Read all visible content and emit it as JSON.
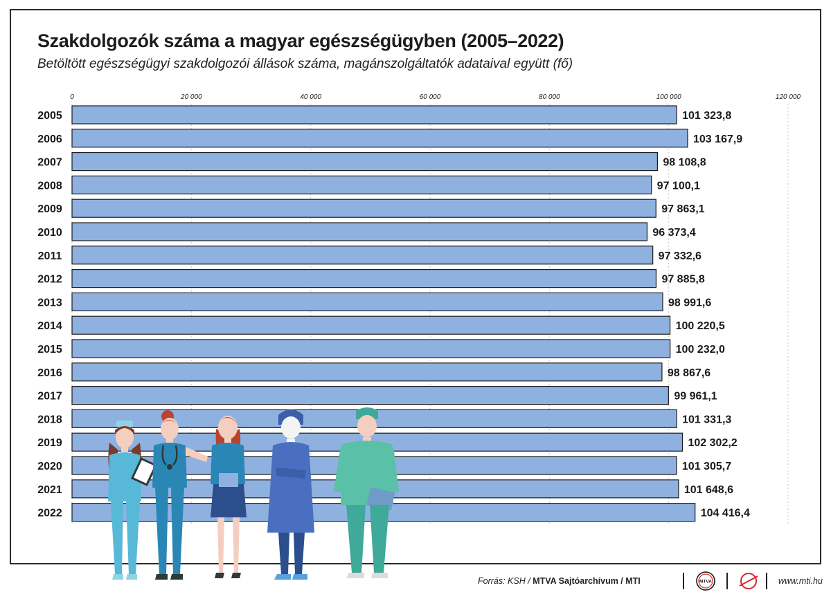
{
  "header": {
    "title": "Szakdolgozók száma a magyar egészségügyben (2005–2022)",
    "subtitle": "Betöltött egészségügyi szakdolgozói állások száma, magánszolgáltatók adataival együtt (fő)"
  },
  "chart_data": {
    "type": "bar",
    "orientation": "horizontal",
    "title": "Szakdolgozók száma a magyar egészségügyben (2005–2022)",
    "subtitle": "Betöltött egészségügyi szakdolgozói állások száma, magánszolgáltatók adataival együtt (fő)",
    "xlim": [
      0,
      120000
    ],
    "xticks": [
      0,
      20000,
      40000,
      60000,
      80000,
      100000,
      120000
    ],
    "xtick_labels": [
      "0",
      "20 000",
      "40 000",
      "60 000",
      "80 000",
      "100 000",
      "120 000"
    ],
    "axis_position": "top",
    "grid": "vertical dotted",
    "categories": [
      "2005",
      "2006",
      "2007",
      "2008",
      "2009",
      "2010",
      "2011",
      "2012",
      "2013",
      "2014",
      "2015",
      "2016",
      "2017",
      "2018",
      "2019",
      "2020",
      "2021",
      "2022"
    ],
    "values": [
      101323.8,
      103167.9,
      98108.8,
      97100.1,
      97863.1,
      96373.4,
      97332.6,
      97885.8,
      98991.6,
      100220.5,
      100232.0,
      98867.6,
      99961.1,
      101331.3,
      102302.2,
      101305.7,
      101648.6,
      104416.4
    ],
    "value_labels": [
      "101 323,8",
      "103 167,9",
      "98 108,8",
      "97 100,1",
      "97 863,1",
      "96 373,4",
      "97 332,6",
      "97 885,8",
      "98 991,6",
      "100 220,5",
      "100 232,0",
      "98 867,6",
      "99 961,1",
      "101 331,3",
      "102 302,2",
      "101 305,7",
      "101 648,6",
      "104 416,4"
    ],
    "colors": {
      "bar": "#8fb1e0",
      "bar_stroke": "#1c1c1c",
      "grid": "#c8c8c8"
    }
  },
  "footer": {
    "source_prefix": "Forrás: KSH / ",
    "source_bold": "MTVA Sajtóarchívum / MTI",
    "logo1_text": "MTVA",
    "url": "www.mti.hu"
  }
}
